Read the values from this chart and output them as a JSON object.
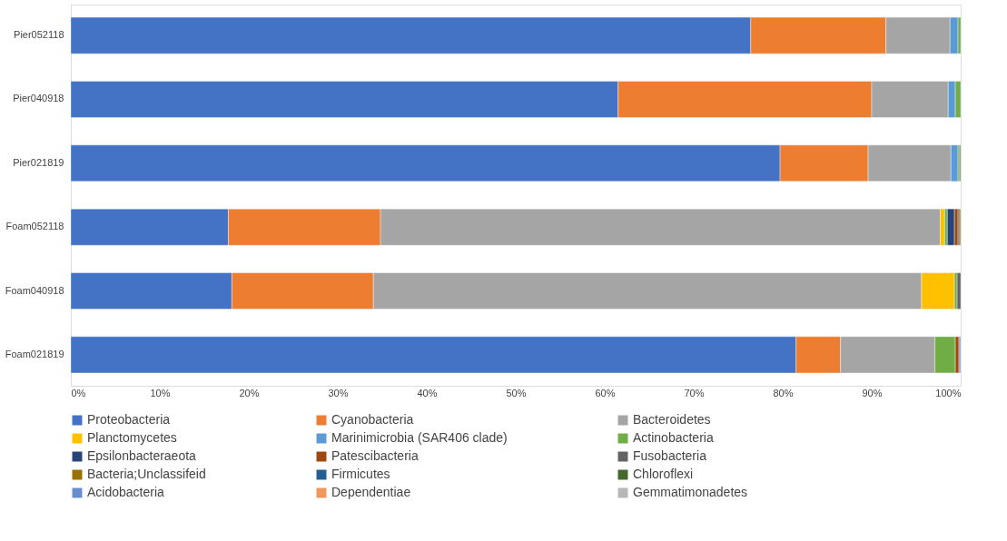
{
  "chart_data": {
    "type": "bar",
    "orientation": "horizontal",
    "stacked": true,
    "grid": false,
    "legend": "bottom",
    "categories": [
      "Pier052118",
      "Pier040918",
      "Pier021819",
      "Foam052118",
      "Foam040918",
      "Foam021819"
    ],
    "xlim": [
      0,
      100
    ],
    "xticks": [
      {
        "value": 0,
        "label": "0%"
      },
      {
        "value": 10,
        "label": "10%"
      },
      {
        "value": 20,
        "label": "20%"
      },
      {
        "value": 30,
        "label": "30%"
      },
      {
        "value": 40,
        "label": "40%"
      },
      {
        "value": 50,
        "label": "50%"
      },
      {
        "value": 60,
        "label": "60%"
      },
      {
        "value": 70,
        "label": "70%"
      },
      {
        "value": 80,
        "label": "80%"
      },
      {
        "value": 90,
        "label": "90%"
      },
      {
        "value": 100,
        "label": "100%"
      }
    ],
    "series": [
      {
        "name": "Proteobacteria",
        "color": "#4472c4",
        "values": [
          76.4,
          61.5,
          79.7,
          17.7,
          18.1,
          81.5
        ]
      },
      {
        "name": "Cyanobacteria",
        "color": "#ed7d31",
        "values": [
          15.2,
          28.5,
          9.9,
          17.1,
          15.9,
          5.0
        ]
      },
      {
        "name": "Bacteroidetes",
        "color": "#a5a5a5",
        "values": [
          7.2,
          8.6,
          9.3,
          62.9,
          61.6,
          10.6
        ]
      },
      {
        "name": "Planctomycetes",
        "color": "#ffc000",
        "values": [
          null,
          null,
          null,
          0.5,
          3.7,
          null
        ]
      },
      {
        "name": "Marinimicrobia (SAR406 clade)",
        "color": "#5b9bd5",
        "values": [
          0.9,
          0.8,
          0.8,
          null,
          null,
          null
        ]
      },
      {
        "name": "Actinobacteria",
        "color": "#70ad47",
        "values": [
          0.3,
          0.6,
          0.2,
          0.3,
          0.3,
          2.3
        ]
      },
      {
        "name": "Epsilonbacteraeota",
        "color": "#264478",
        "values": [
          null,
          null,
          null,
          0.8,
          null,
          null
        ]
      },
      {
        "name": "Patescibacteria",
        "color": "#9e480e",
        "values": [
          null,
          null,
          null,
          0.4,
          null,
          0.4
        ]
      },
      {
        "name": "Fusobacteria",
        "color": "#636363",
        "values": [
          null,
          null,
          0.1,
          0.2,
          0.4,
          0.1
        ]
      },
      {
        "name": "Bacteria;Unclassifeid",
        "color": "#997300",
        "values": [
          null,
          null,
          null,
          0.1,
          null,
          null
        ]
      },
      {
        "name": "Firmicutes",
        "color": "#255e91",
        "values": [
          null,
          null,
          null,
          null,
          null,
          null
        ]
      },
      {
        "name": "Chloroflexi",
        "color": "#43682b",
        "values": [
          null,
          null,
          null,
          null,
          null,
          null
        ]
      },
      {
        "name": "Acidobacteria",
        "color": "#698ed0",
        "values": [
          null,
          null,
          null,
          null,
          null,
          0.1
        ]
      },
      {
        "name": "Dependentiae",
        "color": "#f1975a",
        "values": [
          null,
          null,
          null,
          null,
          null,
          null
        ]
      },
      {
        "name": "Gemmatimonadetes",
        "color": "#b7b7b7",
        "values": [
          null,
          null,
          null,
          null,
          null,
          null
        ]
      }
    ]
  }
}
